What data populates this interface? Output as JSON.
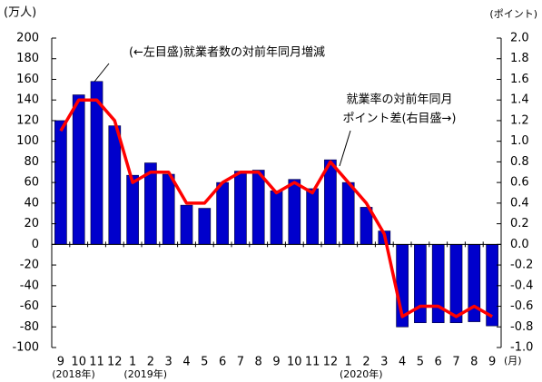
{
  "chart_data": {
    "type": "bar_line",
    "y_label": "(万人)",
    "y2_label": "(ポイント)",
    "x_unit": "(月)",
    "categories": [
      "9",
      "10",
      "11",
      "12",
      "1",
      "2",
      "3",
      "4",
      "5",
      "6",
      "7",
      "8",
      "9",
      "10",
      "11",
      "12",
      "1",
      "2",
      "3",
      "4",
      "5",
      "6",
      "7",
      "8",
      "9"
    ],
    "year_labels": [
      "(2018年)",
      "(2019年)",
      "(2020年)"
    ],
    "series": [
      {
        "name": "(←左目盛)就業者数の対前年同月増減",
        "kind": "bar",
        "color": "#0000cc",
        "values": [
          120,
          145,
          158,
          115,
          67,
          79,
          68,
          38,
          35,
          60,
          71,
          72,
          52,
          63,
          54,
          82,
          60,
          36,
          13,
          -80,
          -76,
          -76,
          -76,
          -75,
          -79
        ]
      },
      {
        "name": [
          "就業率の対前年同月",
          "ポイント差(右目盛→)"
        ],
        "kind": "line",
        "axis": "y2",
        "color": "#ff0000",
        "values": [
          1.1,
          1.4,
          1.4,
          1.2,
          0.6,
          0.7,
          0.7,
          0.4,
          0.4,
          0.6,
          0.7,
          0.7,
          0.5,
          0.6,
          0.5,
          0.8,
          0.6,
          0.4,
          0.1,
          -0.7,
          -0.6,
          -0.6,
          -0.7,
          -0.6,
          -0.7
        ]
      }
    ],
    "ylim": [
      -100,
      200
    ],
    "yticks": [
      -100,
      -80,
      -60,
      -40,
      -20,
      0,
      20,
      40,
      60,
      80,
      100,
      120,
      140,
      160,
      180,
      200
    ],
    "y2lim": [
      -1,
      2
    ],
    "y2ticks": [
      {
        "value": -1,
        "label": "-1.0"
      },
      {
        "value": -0.8,
        "label": "-0.8"
      },
      {
        "value": -0.6,
        "label": "-0.6"
      },
      {
        "value": -0.4,
        "label": "-0.4"
      },
      {
        "value": -0.2,
        "label": "-0.2"
      },
      {
        "value": 0,
        "label": "0.0"
      },
      {
        "value": 0.2,
        "label": "0.2"
      },
      {
        "value": 0.4,
        "label": "0.4"
      },
      {
        "value": 0.6,
        "label": "0.6"
      },
      {
        "value": 0.8,
        "label": "0.8"
      },
      {
        "value": 1,
        "label": "1.0"
      },
      {
        "value": 1.2,
        "label": "1.2"
      },
      {
        "value": 1.4,
        "label": "1.4"
      },
      {
        "value": 1.6,
        "label": "1.6"
      },
      {
        "value": 1.8,
        "label": "1.8"
      },
      {
        "value": 2,
        "label": "2.0"
      }
    ],
    "grid": false
  }
}
